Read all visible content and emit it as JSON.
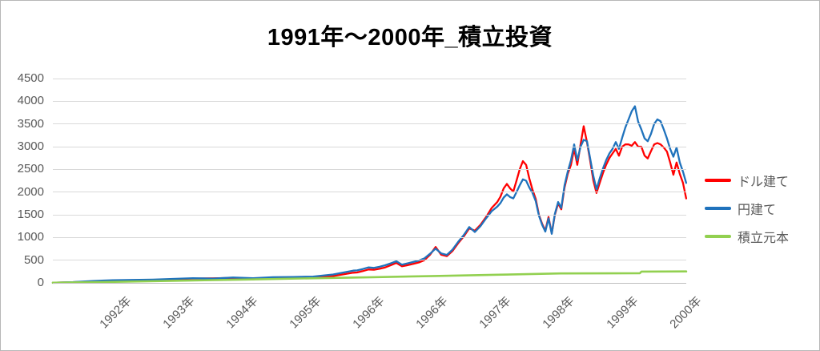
{
  "chart_data": {
    "type": "line",
    "title": "1991年～2000年_積立投資",
    "x_tick_labels": [
      "1992年",
      "1993年",
      "1994年",
      "1995年",
      "1996年",
      "1996年",
      "1997年",
      "1998年",
      "1999年",
      "2000年"
    ],
    "y_ticks": [
      0,
      500,
      1000,
      1500,
      2000,
      2500,
      3000,
      3500,
      4000,
      4500
    ],
    "ylim": [
      0,
      4500
    ],
    "grid": "horizontal",
    "legend_position": "right",
    "colors": {
      "grid": "#d9d9d9",
      "axis_line": "#bfbfbf",
      "tick_text": "#595959",
      "title_text": "#000000",
      "border": "#b7b7b7"
    },
    "x": [
      0,
      0.0316,
      0.0632,
      0.0948,
      0.1264,
      0.158,
      0.1896,
      0.2213,
      0.2529,
      0.2845,
      0.3161,
      0.3477,
      0.3793,
      0.4109,
      0.4425,
      0.4741,
      0.4804,
      0.4893,
      0.4981,
      0.507,
      0.5158,
      0.5247,
      0.5335,
      0.5424,
      0.5512,
      0.5601,
      0.5689,
      0.5778,
      0.5866,
      0.5955,
      0.6043,
      0.6132,
      0.622,
      0.6309,
      0.6397,
      0.6486,
      0.6574,
      0.6663,
      0.6751,
      0.684,
      0.6928,
      0.7017,
      0.7067,
      0.7118,
      0.7168,
      0.7219,
      0.7269,
      0.732,
      0.737,
      0.7421,
      0.7472,
      0.7522,
      0.7573,
      0.7623,
      0.7674,
      0.7724,
      0.7775,
      0.7825,
      0.7876,
      0.7926,
      0.7977,
      0.8027,
      0.8078,
      0.8129,
      0.8179,
      0.823,
      0.828,
      0.8331,
      0.8381,
      0.8432,
      0.8482,
      0.8533,
      0.8583,
      0.8634,
      0.8685,
      0.8735,
      0.8786,
      0.8836,
      0.8887,
      0.8937,
      0.8988,
      0.9038,
      0.9089,
      0.9139,
      0.919,
      0.924,
      0.9291,
      0.9342,
      0.9392,
      0.9443,
      0.9493,
      0.9544,
      0.9594,
      0.9645,
      0.9695,
      0.9746,
      0.9796,
      0.9847,
      0.9898,
      0.9948,
      0.9999
    ],
    "series": [
      {
        "id": "dollar",
        "name": "ドル建て",
        "color": "#ff0000",
        "values": [
          3,
          14,
          33,
          48,
          58,
          66,
          80,
          95,
          100,
          110,
          78,
          115,
          98,
          110,
          150,
          225,
          230,
          260,
          295,
          290,
          310,
          340,
          390,
          440,
          365,
          390,
          420,
          450,
          500,
          620,
          790,
          620,
          590,
          700,
          870,
          1020,
          1200,
          1150,
          1280,
          1450,
          1650,
          1780,
          1900,
          2080,
          2180,
          2080,
          2010,
          2250,
          2500,
          2680,
          2600,
          2300,
          2050,
          1850,
          1500,
          1300,
          1150,
          1450,
          1090,
          1500,
          1750,
          1620,
          2100,
          2400,
          2600,
          2950,
          2600,
          3050,
          3450,
          3100,
          2700,
          2250,
          1980,
          2200,
          2420,
          2600,
          2750,
          2850,
          2950,
          2800,
          3000,
          3050,
          3050,
          3020,
          3100,
          3000,
          3000,
          2800,
          2740,
          2900,
          3050,
          3080,
          3050,
          2980,
          2890,
          2650,
          2380,
          2650,
          2400,
          2200,
          1860
        ]
      },
      {
        "id": "yen",
        "name": "円建て",
        "color": "#1f72bc",
        "values": [
          4,
          18,
          42,
          60,
          66,
          72,
          88,
          104,
          96,
          118,
          105,
          125,
          130,
          140,
          185,
          270,
          275,
          305,
          340,
          330,
          355,
          388,
          430,
          477,
          400,
          430,
          460,
          492,
          540,
          640,
          755,
          650,
          615,
          730,
          900,
          1050,
          1230,
          1120,
          1250,
          1420,
          1580,
          1680,
          1760,
          1880,
          1950,
          1890,
          1860,
          2000,
          2150,
          2280,
          2250,
          2100,
          1980,
          1800,
          1480,
          1280,
          1130,
          1420,
          1080,
          1520,
          1780,
          1650,
          2150,
          2450,
          2700,
          3050,
          2700,
          3000,
          3150,
          3120,
          2750,
          2350,
          2060,
          2300,
          2520,
          2700,
          2850,
          2950,
          3100,
          2950,
          3200,
          3420,
          3600,
          3780,
          3890,
          3550,
          3380,
          3180,
          3120,
          3280,
          3500,
          3600,
          3560,
          3380,
          3180,
          2950,
          2780,
          2980,
          2650,
          2450,
          2200
        ]
      },
      {
        "id": "principal",
        "name": "積立元本",
        "color": "#92d050",
        "x": [
          0,
          0.1075,
          0.2061,
          0.306,
          0.4046,
          0.5045,
          0.6031,
          0.703,
          0.8016,
          0.9267,
          0.9292,
          0.9999
        ],
        "values": [
          3,
          25,
          50,
          75,
          100,
          125,
          152,
          180,
          208,
          212,
          248,
          252
        ]
      }
    ]
  }
}
